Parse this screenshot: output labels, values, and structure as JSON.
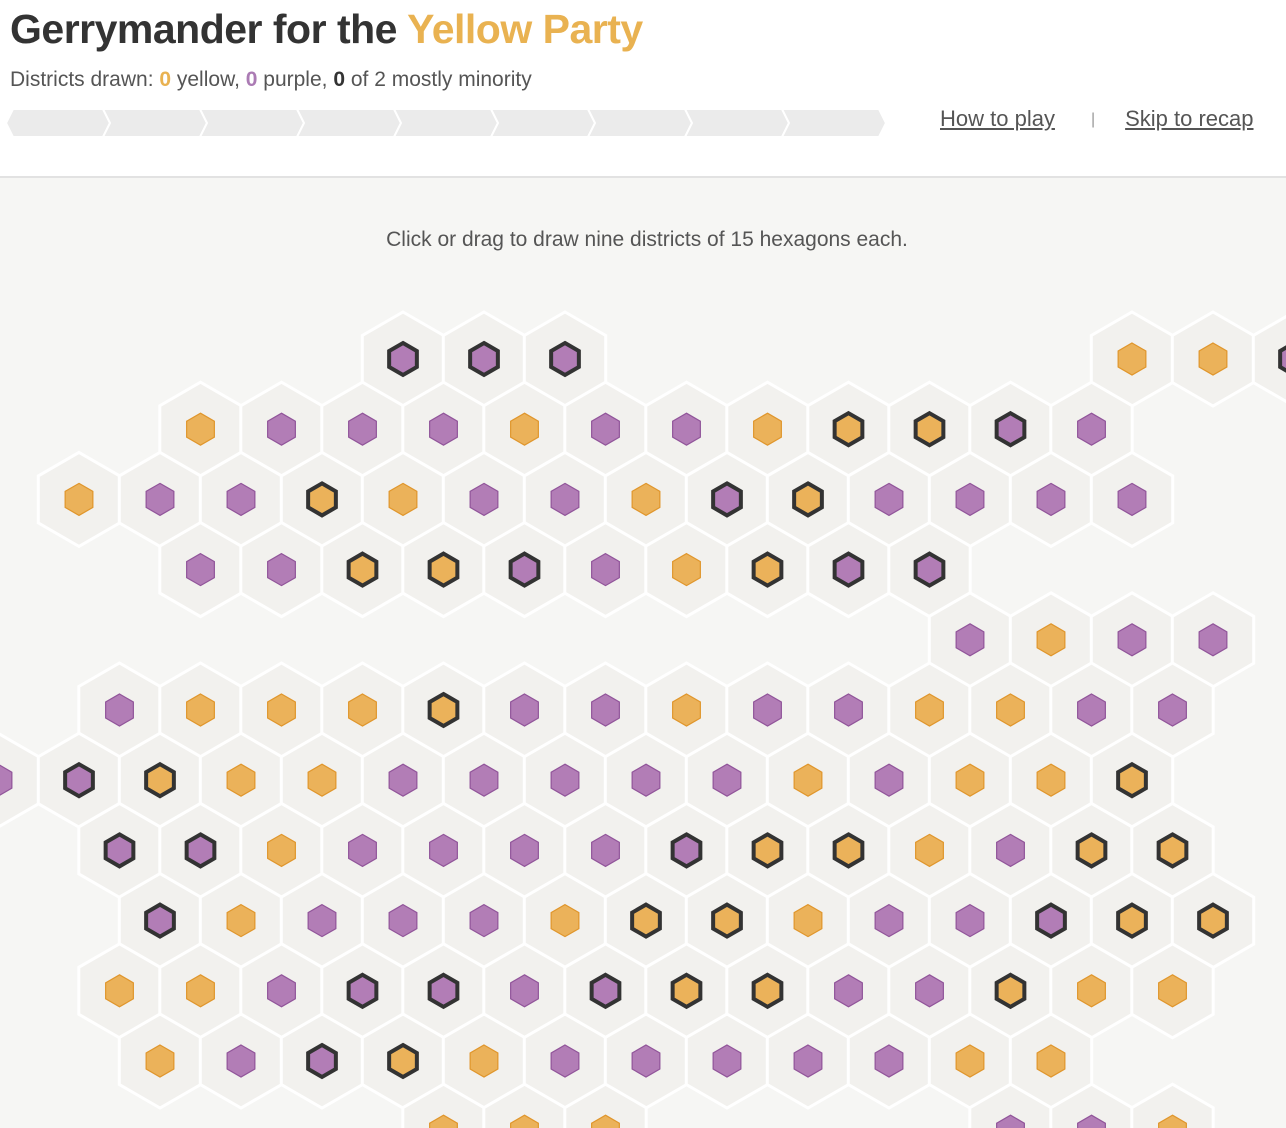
{
  "header": {
    "title_prefix": "Gerrymander for the ",
    "title_party": "Yellow Party",
    "status": {
      "prefix": "Districts drawn: ",
      "yellow_count": "0",
      "yellow_label": " yellow, ",
      "purple_count": "0",
      "purple_label": " purple, ",
      "minority_count": "0",
      "minority_label": " of 2 mostly minority"
    },
    "progress": {
      "segments": 9,
      "filled": 0
    },
    "links": {
      "how_to_play": "How to play",
      "separator": "|",
      "skip": "Skip to recap"
    }
  },
  "board": {
    "instruction": "Click or drag to draw nine districts of 15 hexagons each.",
    "colors": {
      "yellow": "#ebb25a",
      "yellow_stroke": "#e0962c",
      "purple": "#b27db6",
      "purple_stroke": "#91559a",
      "minority_ring": "#333333",
      "cell_fill": "#f2f1ee",
      "cell_stroke": "#ffffff"
    },
    "legend": {
      "Y": "yellow voter",
      "P": "purple voter",
      "y": "yellow voter, minority",
      "p": "purple voter, minority"
    },
    "rows": [
      {
        "offset": 4,
        "cells": "ppp......YYp"
      },
      {
        "offset": 1,
        "cells": "YPPPYPPYyypP"
      },
      {
        "offset": 0,
        "cells": "YPPyYPPYpyPPPP"
      },
      {
        "offset": 1,
        "cells": "PPyypPYypp"
      },
      {
        "offset": 11,
        "cells": "PYPP"
      },
      {
        "offset": 0,
        "cells": "PYYYyPPYPPYYPP"
      },
      {
        "offset": -1,
        "cells": "PpyYYPPPPPYPYYy"
      },
      {
        "offset": 0,
        "cells": "ppYPPPPpyyYPyy"
      },
      {
        "offset": 1,
        "cells": "pYPPPYyyYPPpyy"
      },
      {
        "offset": 0,
        "cells": "YYPppPpyyPPyYY"
      },
      {
        "offset": 1,
        "cells": "YPpyYPPPPPYY"
      },
      {
        "offset": 4,
        "cells": "YYY....PPY"
      }
    ]
  }
}
